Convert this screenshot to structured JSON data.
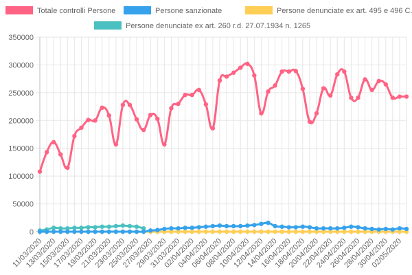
{
  "chart_data": {
    "type": "line",
    "title": "",
    "xlabel": "",
    "ylabel": "",
    "ylim": [
      0,
      350000
    ],
    "yticks": [
      0,
      50000,
      100000,
      150000,
      200000,
      250000,
      300000,
      350000
    ],
    "grid": true,
    "legend_position": "top",
    "categories": [
      "11/03/2020",
      "12/03/2020",
      "13/03/2020",
      "14/03/2020",
      "15/03/2020",
      "16/03/2020",
      "17/03/2020",
      "18/03/2020",
      "19/03/2020",
      "20/03/2020",
      "21/03/2020",
      "22/03/2020",
      "23/03/2020",
      "24/03/2020",
      "25/03/2020",
      "26/03/2020",
      "27/03/2020",
      "28/03/2020",
      "29/03/2020",
      "30/03/2020",
      "31/03/2020",
      "01/04/2020",
      "02/04/2020",
      "03/04/2020",
      "04/04/2020",
      "05/04/2020",
      "06/04/2020",
      "07/04/2020",
      "08/04/2020",
      "09/04/2020",
      "10/04/2020",
      "11/04/2020",
      "12/04/2020",
      "13/04/2020",
      "14/04/2020",
      "15/04/2020",
      "16/04/2020",
      "17/04/2020",
      "18/04/2020",
      "19/04/2020",
      "20/04/2020",
      "21/04/2020",
      "22/04/2020",
      "23/04/2020",
      "24/04/2020",
      "25/04/2020",
      "26/04/2020",
      "27/04/2020",
      "28/04/2020",
      "29/04/2020",
      "30/04/2020",
      "01/05/2020",
      "02/05/2020",
      "03/05/2020"
    ],
    "xtick_labels": [
      "11/03/2020",
      "13/03/2020",
      "15/03/2020",
      "17/03/2020",
      "19/03/2020",
      "21/03/2020",
      "23/03/2020",
      "25/03/2020",
      "27/03/2020",
      "29/03/2020",
      "31/03/2020",
      "02/04/2020",
      "04/04/2020",
      "06/04/2020",
      "08/04/2020",
      "10/04/2020",
      "12/04/2020",
      "14/04/2020",
      "16/04/2020",
      "18/04/2020",
      "20/04/2020",
      "22/04/2020",
      "24/04/2020",
      "26/04/2020",
      "28/04/2020",
      "30/04/2020",
      "02/05/2020"
    ],
    "series": [
      {
        "name": "Totale controlli Persone",
        "color": "#ff6384",
        "values": [
          108000,
          143000,
          161000,
          139000,
          115000,
          172000,
          187000,
          201000,
          200000,
          223000,
          209000,
          157000,
          228000,
          228000,
          202000,
          183000,
          210000,
          203000,
          157000,
          222000,
          230000,
          246000,
          246000,
          255000,
          229000,
          186000,
          272000,
          279000,
          286000,
          295000,
          302000,
          281000,
          213000,
          252000,
          263000,
          288000,
          288000,
          289000,
          257000,
          198000,
          213000,
          258000,
          245000,
          283000,
          288000,
          241000,
          241000,
          274000,
          255000,
          271000,
          265000,
          241000,
          243000,
          243000
        ]
      },
      {
        "name": "Persone sanzionate",
        "color": "#36a2eb",
        "values": [
          0,
          0,
          0,
          0,
          0,
          0,
          0,
          0,
          0,
          0,
          0,
          0,
          0,
          0,
          0,
          0,
          2000,
          3000,
          5000,
          6000,
          6000,
          7000,
          7000,
          8000,
          9000,
          10000,
          11000,
          10000,
          10000,
          10000,
          11000,
          12000,
          14000,
          16000,
          10000,
          9000,
          8000,
          8000,
          9000,
          8000,
          6000,
          6000,
          6000,
          6000,
          7000,
          9000,
          8000,
          6000,
          5000,
          4000,
          5000,
          4000,
          6000,
          5000
        ]
      },
      {
        "name": "Persone denunciate ex art. 495 e 496 C.P.",
        "color": "#ffce56",
        "values": [
          0,
          0,
          0,
          0,
          0,
          0,
          0,
          0,
          0,
          0,
          0,
          0,
          0,
          0,
          0,
          0,
          0,
          0,
          0,
          0,
          0,
          0,
          0,
          0,
          0,
          0,
          0,
          0,
          0,
          0,
          0,
          0,
          0,
          0,
          0,
          0,
          0,
          0,
          0,
          0,
          0,
          0,
          0,
          0,
          0,
          0,
          0,
          0,
          0,
          0,
          0,
          0,
          0,
          0
        ]
      },
      {
        "name": "Persone denunciate ex art. 260 r.d. 27.07.1934 n. 1265",
        "color": "#4bc0c0",
        "values": [
          2000,
          4000,
          7000,
          6000,
          6000,
          7000,
          7000,
          8000,
          8000,
          9000,
          9000,
          10000,
          11000,
          10000,
          9000,
          6000,
          null,
          null,
          null,
          null,
          null,
          null,
          null,
          null,
          null,
          null,
          null,
          null,
          null,
          null,
          null,
          null,
          null,
          null,
          null,
          null,
          null,
          null,
          null,
          null,
          null,
          null,
          null,
          null,
          null,
          null,
          null,
          null,
          null,
          null,
          null,
          null,
          null,
          null
        ]
      }
    ]
  }
}
